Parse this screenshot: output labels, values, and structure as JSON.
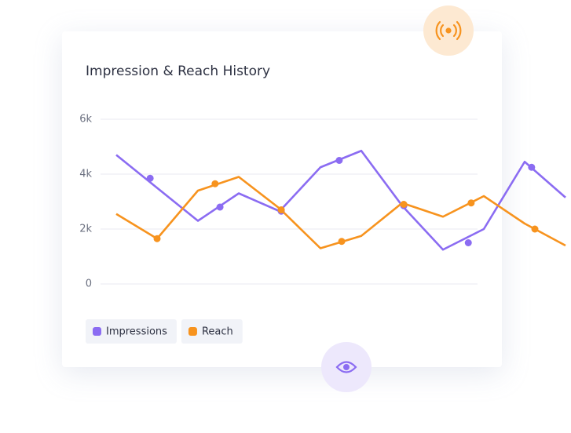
{
  "chart_data": {
    "type": "line",
    "title": "Impression & Reach History",
    "x": [
      0,
      1,
      2,
      3,
      4,
      5,
      6,
      7,
      8,
      9,
      10,
      11
    ],
    "xlim": [
      0,
      11
    ],
    "ylim": [
      0,
      6000
    ],
    "yticks": [
      0,
      {
        "value": 2000,
        "label": "2k"
      },
      {
        "value": 4000,
        "label": "4k"
      },
      {
        "value": 6000,
        "label": "6k"
      }
    ],
    "grid": true,
    "series": [
      {
        "name": "Impressions",
        "color": "#8b6cf2",
        "values": [
          4700,
          3500,
          2300,
          3300,
          2650,
          4250,
          4850,
          2850,
          1250,
          2000,
          4450,
          3150
        ],
        "markers": {
          "x": [
            0.83,
            2.54,
            4.04,
            5.46,
            7.04,
            8.62,
            10.17
          ],
          "values": [
            3850,
            2800,
            2650,
            4500,
            2850,
            1500,
            4250
          ]
        }
      },
      {
        "name": "Reach",
        "color": "#f7931e",
        "values": [
          2550,
          1650,
          3400,
          3900,
          2750,
          1300,
          1750,
          2950,
          2450,
          3200,
          2200,
          1400
        ],
        "markers": {
          "x": [
            1,
            2.42,
            4.04,
            5.52,
            7.04,
            8.69,
            10.25
          ],
          "values": [
            1650,
            3650,
            2700,
            1550,
            2900,
            2950,
            2000
          ]
        }
      }
    ]
  }
}
